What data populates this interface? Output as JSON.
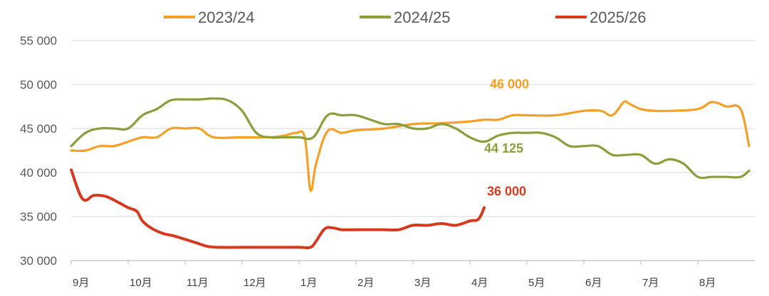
{
  "chart_data": {
    "type": "line",
    "title": "",
    "xlabel": "",
    "ylabel": "",
    "ylim": [
      30000,
      55000
    ],
    "y_ticks": [
      {
        "value": 55000,
        "label": "55 000"
      },
      {
        "value": 50000,
        "label": "50 000"
      },
      {
        "value": 45000,
        "label": "45 000"
      },
      {
        "value": 40000,
        "label": "40 000"
      },
      {
        "value": 35000,
        "label": "35 000"
      },
      {
        "value": 30000,
        "label": "30 000"
      }
    ],
    "x_range": [
      0,
      12
    ],
    "x_ticks": [
      {
        "value": 0,
        "label": "9月"
      },
      {
        "value": 1,
        "label": "10月"
      },
      {
        "value": 2,
        "label": "11月"
      },
      {
        "value": 3,
        "label": "12月"
      },
      {
        "value": 4,
        "label": "1月"
      },
      {
        "value": 5,
        "label": "2月"
      },
      {
        "value": 6,
        "label": "3月"
      },
      {
        "value": 7,
        "label": "4月"
      },
      {
        "value": 8,
        "label": "5月"
      },
      {
        "value": 9,
        "label": "6月"
      },
      {
        "value": 10,
        "label": "7月"
      },
      {
        "value": 11,
        "label": "8月"
      }
    ],
    "grid": true,
    "legend_position": "top",
    "series": [
      {
        "name": "2023/24",
        "color": "#F5A025",
        "x": [
          0,
          0.25,
          0.5,
          0.75,
          1.0,
          1.25,
          1.5,
          1.75,
          2.0,
          2.25,
          2.5,
          3.0,
          3.5,
          3.75,
          3.95,
          4.1,
          4.2,
          4.3,
          4.5,
          4.75,
          5.0,
          5.5,
          6.0,
          6.5,
          7.0,
          7.25,
          7.5,
          7.75,
          8.0,
          8.5,
          9.0,
          9.3,
          9.5,
          9.7,
          9.8,
          10.0,
          10.25,
          10.5,
          11.0,
          11.25,
          11.5,
          11.75,
          11.9
        ],
        "y": [
          42500,
          42500,
          43000,
          43000,
          43500,
          44000,
          44000,
          45000,
          45000,
          45000,
          44000,
          44000,
          44000,
          44200,
          44500,
          44000,
          38000,
          41000,
          44700,
          44500,
          44800,
          45000,
          45500,
          45600,
          45800,
          46000,
          46000,
          46500,
          46500,
          46500,
          47000,
          47000,
          46500,
          48000,
          47800,
          47200,
          47000,
          47000,
          47200,
          48000,
          47500,
          47200,
          43000
        ]
      },
      {
        "name": "2024/25",
        "color": "#8A9E3A",
        "x": [
          0,
          0.25,
          0.5,
          0.75,
          1.0,
          1.25,
          1.5,
          1.75,
          2.0,
          2.25,
          2.5,
          2.75,
          3.0,
          3.25,
          3.5,
          3.75,
          4.0,
          4.25,
          4.5,
          4.75,
          5.0,
          5.25,
          5.5,
          5.75,
          6.0,
          6.25,
          6.5,
          6.75,
          7.0,
          7.25,
          7.5,
          7.75,
          8.0,
          8.25,
          8.5,
          8.75,
          9.0,
          9.25,
          9.5,
          9.75,
          10.0,
          10.25,
          10.5,
          10.75,
          11.0,
          11.25,
          11.5,
          11.75,
          11.9
        ],
        "y": [
          43000,
          44500,
          45000,
          45000,
          45000,
          46500,
          47200,
          48200,
          48300,
          48300,
          48400,
          48200,
          47000,
          44500,
          44000,
          44000,
          44000,
          44000,
          46500,
          46500,
          46500,
          46000,
          45500,
          45500,
          45000,
          45000,
          45500,
          45000,
          44000,
          43500,
          44200,
          44500,
          44500,
          44500,
          44000,
          43000,
          43000,
          43000,
          42000,
          42000,
          42000,
          41000,
          41500,
          41000,
          39500,
          39500,
          39500,
          39500,
          40200
        ]
      },
      {
        "name": "2025/26",
        "color": "#D63A1E",
        "x": [
          0,
          0.2,
          0.4,
          0.6,
          0.8,
          1.0,
          1.15,
          1.25,
          1.4,
          1.6,
          1.8,
          2.0,
          2.2,
          2.4,
          2.6,
          3.0,
          3.5,
          4.0,
          4.2,
          4.3,
          4.45,
          4.6,
          4.75,
          5.0,
          5.25,
          5.5,
          5.75,
          6.0,
          6.25,
          6.5,
          6.75,
          7.0,
          7.15,
          7.25
        ],
        "y": [
          40300,
          37000,
          37400,
          37300,
          36700,
          36000,
          35600,
          34500,
          33700,
          33100,
          32800,
          32400,
          32000,
          31600,
          31500,
          31500,
          31500,
          31500,
          31500,
          32200,
          33600,
          33700,
          33500,
          33500,
          33500,
          33500,
          33500,
          34000,
          34000,
          34200,
          34000,
          34500,
          34700,
          36000
        ]
      }
    ],
    "annotations": [
      {
        "text": "46 000",
        "series": "2023/24",
        "color": "#F5A025",
        "x": 7.35,
        "y": 46000
      },
      {
        "text": "44 125",
        "series": "2024/25",
        "color": "#8A9E3A",
        "x": 7.25,
        "y": 44125
      },
      {
        "text": "36 000",
        "series": "2025/26",
        "color": "#D63A1E",
        "x": 7.3,
        "y": 36000
      }
    ]
  }
}
